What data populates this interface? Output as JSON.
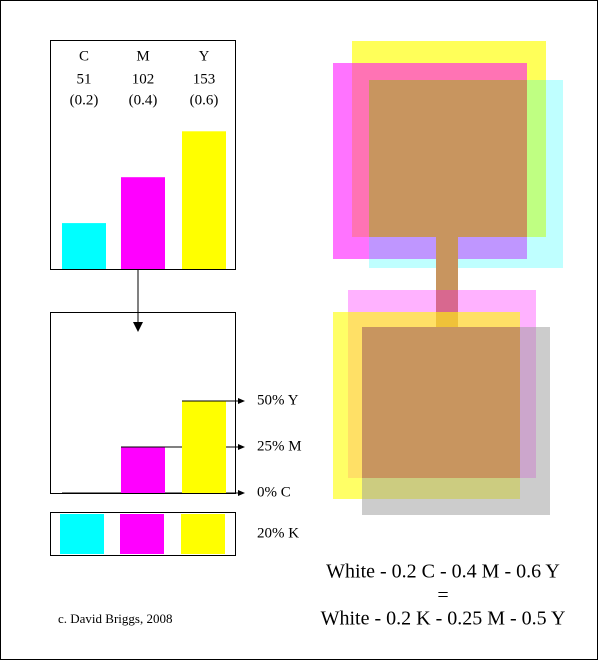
{
  "top_panel": {
    "columns": [
      {
        "name": "C",
        "value": 51,
        "fraction": "(0.2)",
        "color": "#00ffff"
      },
      {
        "name": "M",
        "value": 102,
        "fraction": "(0.4)",
        "color": "#ff00ff"
      },
      {
        "name": "Y",
        "value": 153,
        "fraction": "(0.6)",
        "color": "#ffff00"
      }
    ]
  },
  "lower_panel": {
    "values": [
      0,
      25,
      50
    ],
    "labels": [
      "0% C",
      "25% M",
      "50% Y"
    ],
    "colors": [
      "#00ffff",
      "#ff00ff",
      "#ffff00"
    ]
  },
  "k_strip": {
    "label": "20% K"
  },
  "equation": {
    "line1": "White - 0.2 C - 0.4 M - 0.6 Y",
    "equals": "=",
    "line2": "White - 0.2 K - 0.25 M - 0.5 Y"
  },
  "credit": "c. David Briggs, 2008"
}
